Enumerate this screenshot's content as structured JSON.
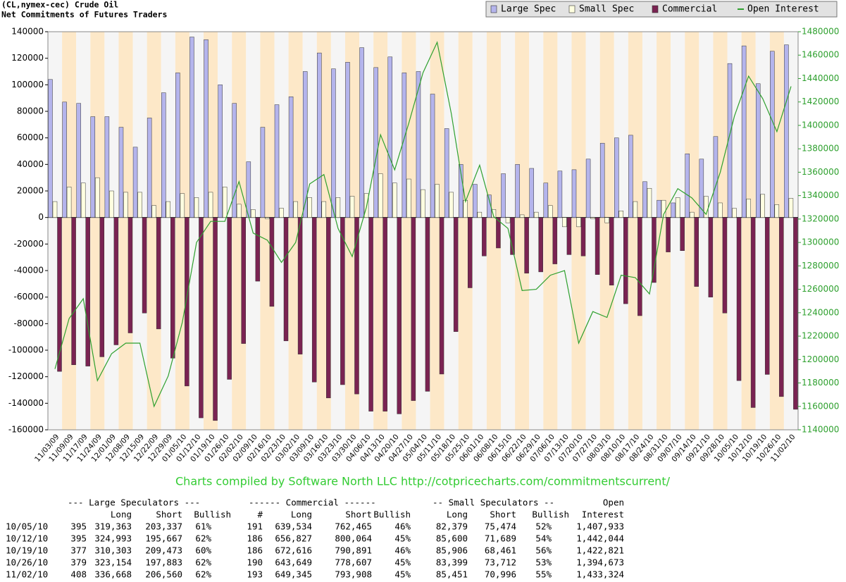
{
  "chart_data": {
    "type": "bar",
    "title": "(CL,nymex-cec) Crude Oil",
    "subtitle": "Net Commitments of Futures Traders",
    "footer": "Charts compiled by Software North LLC  http://cotpricecharts.com/commitmentscurrent/",
    "categories": [
      "11/03/09",
      "11/09/09",
      "11/17/09",
      "11/24/09",
      "12/01/09",
      "12/08/09",
      "12/15/09",
      "12/22/09",
      "12/29/09",
      "01/05/10",
      "01/12/10",
      "01/19/10",
      "01/26/10",
      "02/02/10",
      "02/09/10",
      "02/16/10",
      "02/23/10",
      "03/02/10",
      "03/09/10",
      "03/16/10",
      "03/23/10",
      "03/30/10",
      "04/06/10",
      "04/13/10",
      "04/20/10",
      "04/27/10",
      "05/04/10",
      "05/11/10",
      "05/18/10",
      "05/25/10",
      "06/01/10",
      "06/08/10",
      "06/15/10",
      "06/22/10",
      "06/29/10",
      "07/06/10",
      "07/13/10",
      "07/20/10",
      "07/27/10",
      "08/03/10",
      "08/10/10",
      "08/17/10",
      "08/24/10",
      "08/31/10",
      "09/07/10",
      "09/14/10",
      "09/21/10",
      "09/28/10",
      "10/05/10",
      "10/12/10",
      "10/19/10",
      "10/26/10",
      "11/02/10"
    ],
    "series": [
      {
        "name": "Large Spec",
        "type": "bar",
        "color": "#b4b4ec",
        "values": [
          104000,
          87000,
          86000,
          76000,
          76000,
          68000,
          53000,
          75000,
          94000,
          109000,
          136000,
          134000,
          100000,
          86000,
          42000,
          68000,
          85000,
          91000,
          110000,
          124000,
          112000,
          117000,
          128000,
          113000,
          121000,
          109000,
          110000,
          93000,
          67000,
          40000,
          25000,
          17000,
          33000,
          40000,
          37000,
          26000,
          35000,
          36000,
          44000,
          56000,
          60000,
          62000,
          27000,
          13000,
          11000,
          48000,
          44000,
          61000,
          116026,
          129326,
          100830,
          125271,
          130108
        ]
      },
      {
        "name": "Small Spec",
        "type": "bar",
        "color": "#ffffe0",
        "values": [
          12000,
          23000,
          26000,
          30000,
          20000,
          19000,
          19000,
          9000,
          12000,
          18000,
          15000,
          19000,
          23000,
          10000,
          6000,
          -1000,
          7000,
          12000,
          15000,
          12000,
          15000,
          16000,
          18000,
          33000,
          26000,
          29000,
          21000,
          25000,
          19000,
          13000,
          4000,
          6000,
          -4000,
          2000,
          4000,
          9000,
          -7000,
          -7000,
          -1000,
          -4000,
          5000,
          12000,
          22000,
          13000,
          15000,
          4000,
          16000,
          11000,
          6905,
          13911,
          17445,
          9687,
          14455
        ]
      },
      {
        "name": "Commercial",
        "type": "bar",
        "color": "#7a2352",
        "values": [
          -116000,
          -111000,
          -112000,
          -105000,
          -96000,
          -87000,
          -72000,
          -84000,
          -106000,
          -127000,
          -151000,
          -153000,
          -122000,
          -95000,
          -48000,
          -67000,
          -93000,
          -103000,
          -124000,
          -136000,
          -126000,
          -133000,
          -146000,
          -146000,
          -148000,
          -138000,
          -131000,
          -118000,
          -86000,
          -53000,
          -29000,
          -23000,
          -28000,
          -42000,
          -41000,
          -35000,
          -28000,
          -29000,
          -43000,
          -51000,
          -65000,
          -74000,
          -49000,
          -26000,
          -25000,
          -52000,
          -60000,
          -72000,
          -122931,
          -143237,
          -118275,
          -134958,
          -144563
        ]
      },
      {
        "name": "Open Interest",
        "type": "line",
        "axis": "y2",
        "color": "#2ea02e",
        "values": [
          1192000,
          1235000,
          1252000,
          1182000,
          1205000,
          1214000,
          1214000,
          1160000,
          1186000,
          1232000,
          1300000,
          1318000,
          1318000,
          1352000,
          1308000,
          1302000,
          1283000,
          1300000,
          1350000,
          1358000,
          1312000,
          1288000,
          1330000,
          1392000,
          1362000,
          1402000,
          1445000,
          1471000,
          1410000,
          1335000,
          1366000,
          1322000,
          1312000,
          1259000,
          1260000,
          1272000,
          1276000,
          1214000,
          1241000,
          1236000,
          1272000,
          1270000,
          1256000,
          1324000,
          1346000,
          1338000,
          1324000,
          1360000,
          1407933,
          1442044,
          1422821,
          1394673,
          1433324
        ]
      }
    ],
    "ylim": [
      -160000,
      140000
    ],
    "yticks": [
      -160000,
      -140000,
      -120000,
      -100000,
      -80000,
      -60000,
      -40000,
      -20000,
      0,
      20000,
      40000,
      60000,
      80000,
      100000,
      120000,
      140000
    ],
    "y2lim": [
      1140000,
      1480000
    ],
    "y2ticks": [
      1140000,
      1160000,
      1180000,
      1200000,
      1220000,
      1240000,
      1260000,
      1280000,
      1300000,
      1320000,
      1340000,
      1360000,
      1380000,
      1400000,
      1420000,
      1440000,
      1460000,
      1480000
    ],
    "legend": "top-right"
  },
  "table": {
    "groups": [
      "--- Large Speculators ---",
      "------ Commercial ------",
      "-- Small Speculators --",
      "Open"
    ],
    "column_headers": [
      "Long",
      "Short",
      "Bullish",
      "#",
      "Long",
      "Short",
      "Bullish",
      "Long",
      "Short",
      "Bullish",
      "Interest"
    ],
    "rows": [
      [
        "10/05/10",
        "395",
        "319,363",
        "203,337",
        "61%",
        "191",
        "639,534",
        "762,465",
        "46%",
        "82,379",
        "75,474",
        "52%",
        "1,407,933"
      ],
      [
        "10/12/10",
        "395",
        "324,993",
        "195,667",
        "62%",
        "186",
        "656,827",
        "800,064",
        "45%",
        "85,600",
        "71,689",
        "54%",
        "1,442,044"
      ],
      [
        "10/19/10",
        "377",
        "310,303",
        "209,473",
        "60%",
        "186",
        "672,616",
        "790,891",
        "46%",
        "85,906",
        "68,461",
        "56%",
        "1,422,821"
      ],
      [
        "10/26/10",
        "379",
        "323,154",
        "197,883",
        "62%",
        "190",
        "643,649",
        "778,607",
        "45%",
        "83,399",
        "73,712",
        "53%",
        "1,394,673"
      ],
      [
        "11/02/10",
        "408",
        "336,668",
        "206,560",
        "62%",
        "193",
        "649,345",
        "793,908",
        "45%",
        "85,451",
        "70,996",
        "55%",
        "1,433,324"
      ]
    ]
  }
}
